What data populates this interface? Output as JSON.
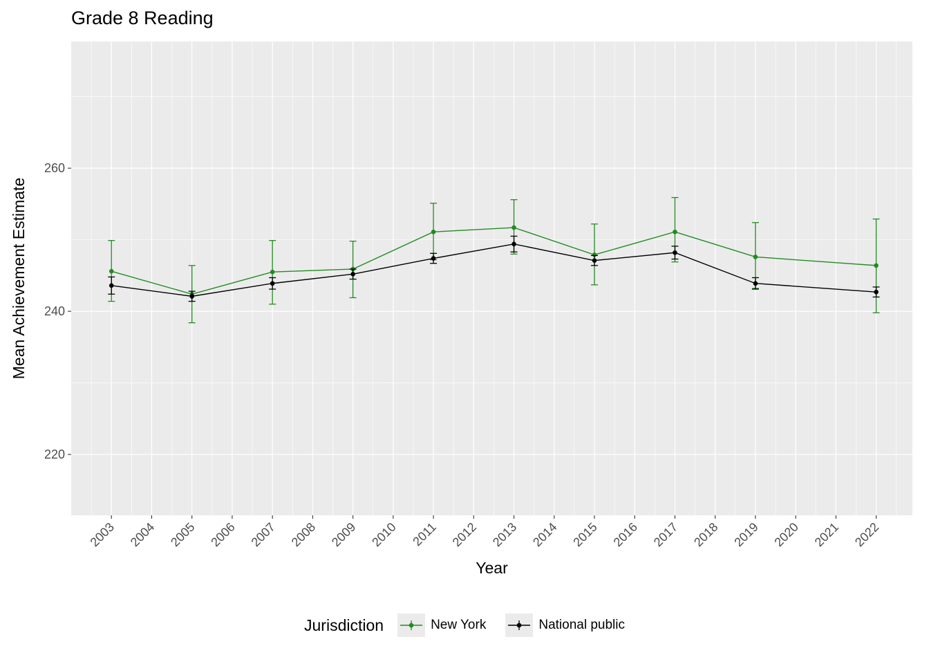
{
  "title": "Grade 8 Reading",
  "chart_data": {
    "type": "line",
    "title": "Grade 8 Reading",
    "xlabel": "Year",
    "ylabel": "Mean Achievement Estimate",
    "legend_title": "Jurisdiction",
    "legend_position": "bottom",
    "grid": true,
    "panel_background": "#EBEBEB",
    "grid_color": "#FFFFFF",
    "tick_label_color": "#4D4D4D",
    "tick_mark_color": "#333333",
    "x_ticks": [
      2003,
      2004,
      2005,
      2006,
      2007,
      2008,
      2009,
      2010,
      2011,
      2012,
      2013,
      2014,
      2015,
      2016,
      2017,
      2018,
      2019,
      2020,
      2021,
      2022
    ],
    "y_ticks": [
      220,
      240,
      260
    ],
    "y_minor_ticks": [
      230,
      250,
      270
    ],
    "xlim": [
      2002.0,
      2022.9
    ],
    "ylim": [
      211.5,
      277.7
    ],
    "x": [
      2003,
      2005,
      2007,
      2009,
      2011,
      2013,
      2015,
      2017,
      2019,
      2022
    ],
    "series": [
      {
        "name": "New York",
        "color": "#228B22",
        "values": [
          245.6,
          242.4,
          245.5,
          245.9,
          251.1,
          251.7,
          247.9,
          251.1,
          247.6,
          246.4
        ],
        "ci_low": [
          241.4,
          238.4,
          241.0,
          241.9,
          247.2,
          248.0,
          243.7,
          246.9,
          243.2,
          239.8
        ],
        "ci_high": [
          249.9,
          246.4,
          249.9,
          249.8,
          255.1,
          255.6,
          252.2,
          255.9,
          252.4,
          252.9
        ]
      },
      {
        "name": "National public",
        "color": "#000000",
        "values": [
          243.6,
          242.1,
          243.9,
          245.2,
          247.4,
          249.4,
          247.1,
          248.2,
          243.9,
          242.7
        ],
        "ci_low": [
          242.4,
          241.4,
          243.1,
          244.5,
          246.7,
          248.3,
          246.4,
          247.3,
          243.1,
          242.0
        ],
        "ci_high": [
          244.8,
          242.8,
          244.7,
          245.9,
          248.1,
          250.5,
          247.8,
          249.1,
          244.7,
          243.4
        ]
      }
    ]
  }
}
